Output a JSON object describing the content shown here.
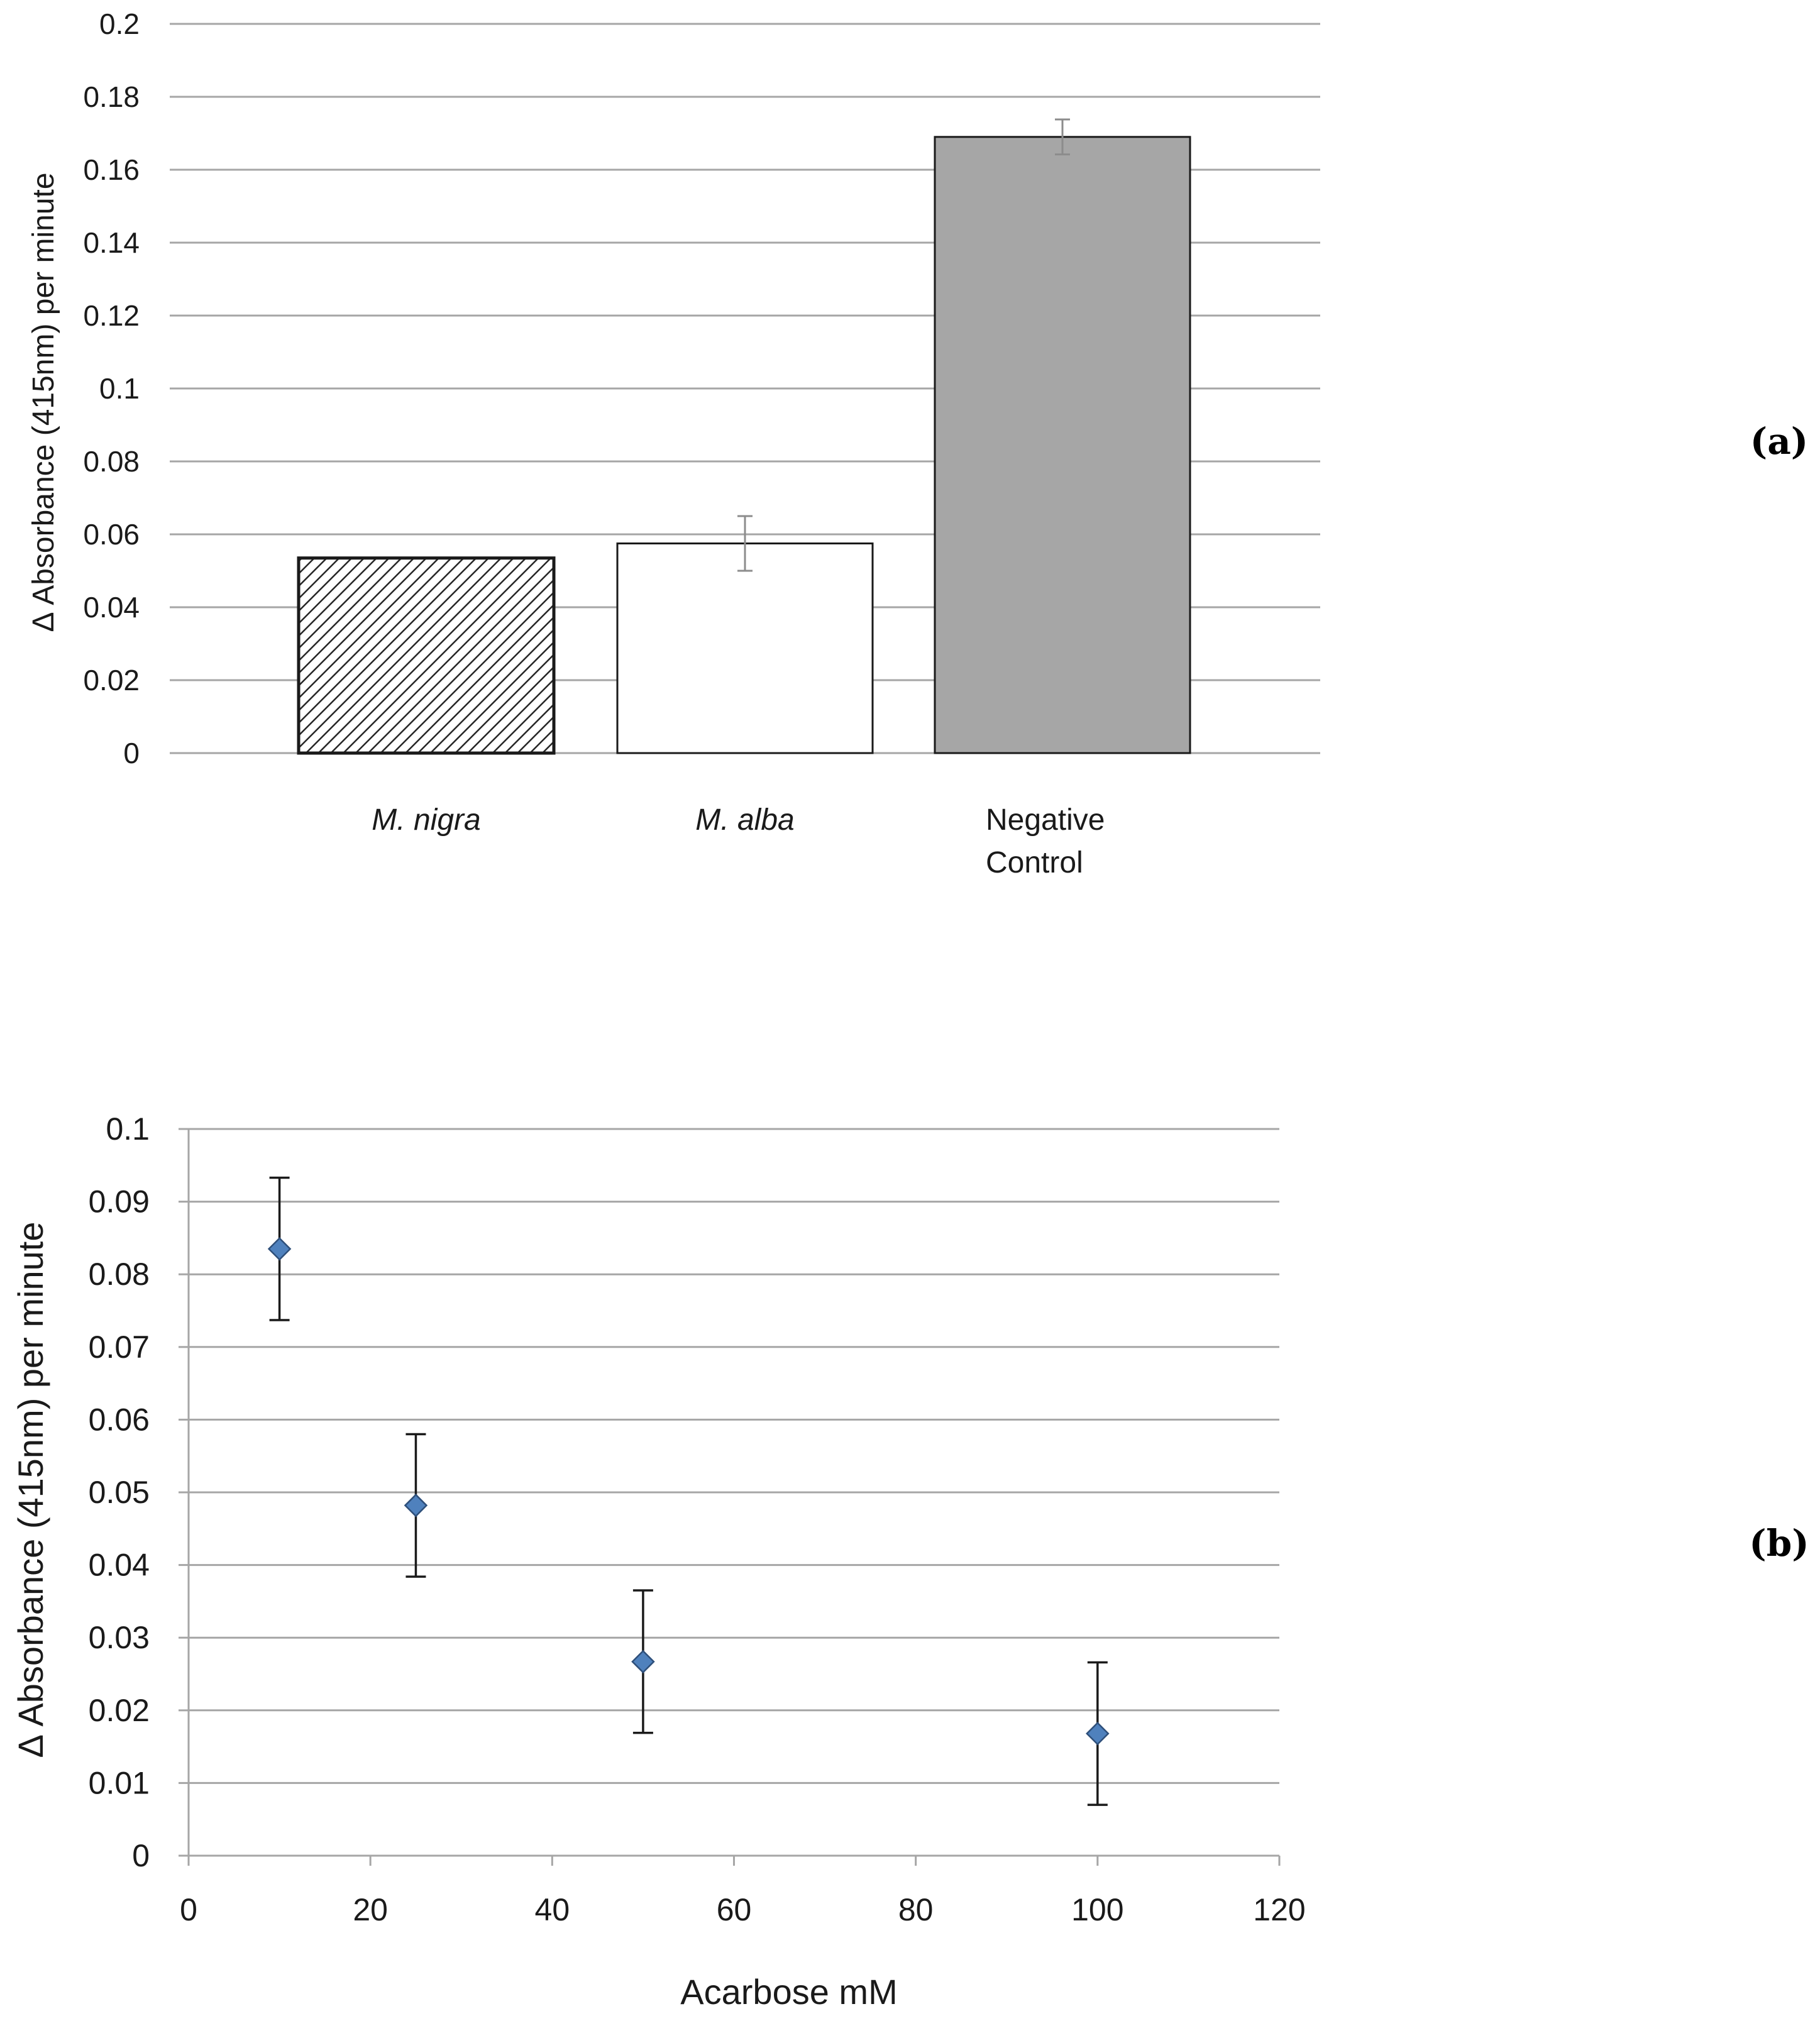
{
  "colors": {
    "grid": "#a6a6a6",
    "nigra_fill": "#ffffff",
    "nigra_hatch": "#262626",
    "alba_fill": "#ffffff",
    "control_fill": "#a6a6a6",
    "bar_edge": "#1a1a1a",
    "error_a": "#8c8c8c",
    "error_b": "#1a1a1a",
    "marker_fill": "#4f81bd",
    "marker_edge": "#2e4f7a"
  },
  "chart_data": [
    {
      "id": "a",
      "type": "bar",
      "panel_label": "(a)",
      "ylabel": "Δ Absorbance (415nm)  per minute",
      "xlabel": "",
      "ylim": [
        0,
        0.2
      ],
      "ytick_step": 0.02,
      "yticks": [
        "0",
        "0.02",
        "0.04",
        "0.06",
        "0.08",
        "0.1",
        "0.12",
        "0.14",
        "0.16",
        "0.18",
        "0.2"
      ],
      "grid": true,
      "categories": [
        {
          "lines": [
            "M. nigra"
          ],
          "italic": true
        },
        {
          "lines": [
            "M. alba"
          ],
          "italic": true
        },
        {
          "lines": [
            "Negative",
            "Control"
          ],
          "italic": false
        }
      ],
      "values": [
        0.0535,
        0.0575,
        0.169
      ],
      "errors": [
        0.0,
        0.0075,
        0.0048
      ],
      "styles": [
        "hatched",
        "white",
        "gray"
      ]
    },
    {
      "id": "b",
      "type": "scatter",
      "panel_label": "(b)",
      "ylabel": "Δ Absorbance (415nm)  per minute",
      "xlabel": "Acarbose mM",
      "xlim": [
        0,
        120
      ],
      "ylim": [
        0,
        0.1
      ],
      "xtick_step": 20,
      "ytick_step": 0.01,
      "xticks": [
        "0",
        "20",
        "40",
        "60",
        "80",
        "100",
        "120"
      ],
      "yticks": [
        "0",
        "0.01",
        "0.02",
        "0.03",
        "0.04",
        "0.05",
        "0.06",
        "0.07",
        "0.08",
        "0.09",
        "0.1"
      ],
      "grid": true,
      "x": [
        10,
        25,
        50,
        100
      ],
      "y": [
        0.0835,
        0.0482,
        0.0267,
        0.0168
      ],
      "errors": [
        0.0098,
        0.0098,
        0.0098,
        0.0098
      ]
    }
  ]
}
